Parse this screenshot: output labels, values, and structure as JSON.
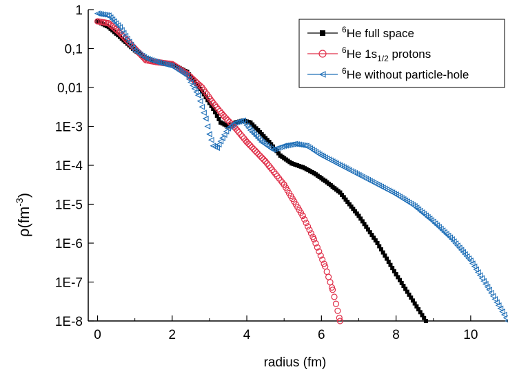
{
  "chart_data": {
    "type": "scatter",
    "xlabel": "radius (fm)",
    "ylabel": {
      "base": "ρ(fm",
      "sup": "-3",
      "close": ")"
    },
    "xlim": [
      -0.25,
      11
    ],
    "ylim_log10": [
      -8,
      0
    ],
    "y_scale": "log",
    "x_ticks": [
      0,
      2,
      4,
      6,
      8,
      10
    ],
    "x_tick_labels": [
      "0",
      "2",
      "4",
      "6",
      "8",
      "10"
    ],
    "y_ticks_log10": [
      0,
      -1,
      -2,
      -3,
      -4,
      -5,
      -6,
      -7,
      -8
    ],
    "y_tick_labels": [
      "1",
      "0,1",
      "0,01",
      "1E-3",
      "1E-4",
      "1E-5",
      "1E-6",
      "1E-7",
      "1E-8"
    ],
    "legend_position": "top-right",
    "series": [
      {
        "key": "full",
        "legend": {
          "sup": "6",
          "text": "He full space",
          "sub": "",
          "after": ""
        },
        "color": "#000000",
        "marker": "square",
        "x": [
          0,
          0.3,
          0.6,
          1.0,
          1.3,
          1.6,
          2.0,
          2.4,
          2.8,
          3.1,
          3.3,
          3.5,
          3.7,
          3.9,
          4.1,
          4.3,
          4.6,
          4.9,
          5.2,
          5.5,
          5.8,
          6.1,
          6.5,
          7.0,
          7.5,
          8.0,
          8.4,
          8.8
        ],
        "y_log10": [
          -0.3,
          -0.45,
          -0.7,
          -1.05,
          -1.25,
          -1.35,
          -1.4,
          -1.6,
          -2.1,
          -2.55,
          -2.9,
          -3.0,
          -2.9,
          -2.85,
          -2.9,
          -3.1,
          -3.4,
          -3.75,
          -3.95,
          -4.05,
          -4.2,
          -4.4,
          -4.7,
          -5.3,
          -6.0,
          -6.8,
          -7.4,
          -8.0
        ]
      },
      {
        "key": "proton",
        "legend": {
          "sup": "6",
          "text": "He 1s",
          "sub": "1/2",
          "after": " protons"
        },
        "color": "#e0304a",
        "marker": "circle",
        "x": [
          0,
          0.3,
          0.6,
          1.0,
          1.3,
          1.6,
          2.0,
          2.4,
          2.8,
          3.1,
          3.4,
          3.7,
          4.0,
          4.5,
          5.0,
          5.5,
          5.8,
          6.1,
          6.3,
          6.5
        ],
        "y_log10": [
          -0.3,
          -0.35,
          -0.6,
          -1.0,
          -1.3,
          -1.35,
          -1.4,
          -1.65,
          -2.0,
          -2.4,
          -2.75,
          -3.05,
          -3.4,
          -3.9,
          -4.5,
          -5.3,
          -5.9,
          -6.6,
          -7.2,
          -8.0
        ]
      },
      {
        "key": "noph",
        "legend": {
          "sup": "6",
          "text": "He without particle-hole",
          "sub": "",
          "after": ""
        },
        "color": "#2070b8",
        "marker": "triangle",
        "x": [
          0,
          0.3,
          0.6,
          1.0,
          1.3,
          1.6,
          2.0,
          2.4,
          2.7,
          2.9,
          3.0,
          3.1,
          3.2,
          3.35,
          3.5,
          3.7,
          3.9,
          4.1,
          4.4,
          4.7,
          5.0,
          5.3,
          5.6,
          6.0,
          6.5,
          7.0,
          7.5,
          8.0,
          8.5,
          9.0,
          9.5,
          10.0,
          10.5,
          11.0
        ],
        "y_log10": [
          -0.1,
          -0.15,
          -0.45,
          -1.05,
          -1.25,
          -1.35,
          -1.45,
          -1.7,
          -2.2,
          -2.8,
          -3.2,
          -3.5,
          -3.55,
          -3.3,
          -3.05,
          -2.9,
          -2.85,
          -3.1,
          -3.4,
          -3.6,
          -3.5,
          -3.45,
          -3.5,
          -3.75,
          -4.0,
          -4.25,
          -4.5,
          -4.75,
          -5.05,
          -5.45,
          -5.9,
          -6.45,
          -7.2,
          -8.0
        ]
      }
    ]
  }
}
